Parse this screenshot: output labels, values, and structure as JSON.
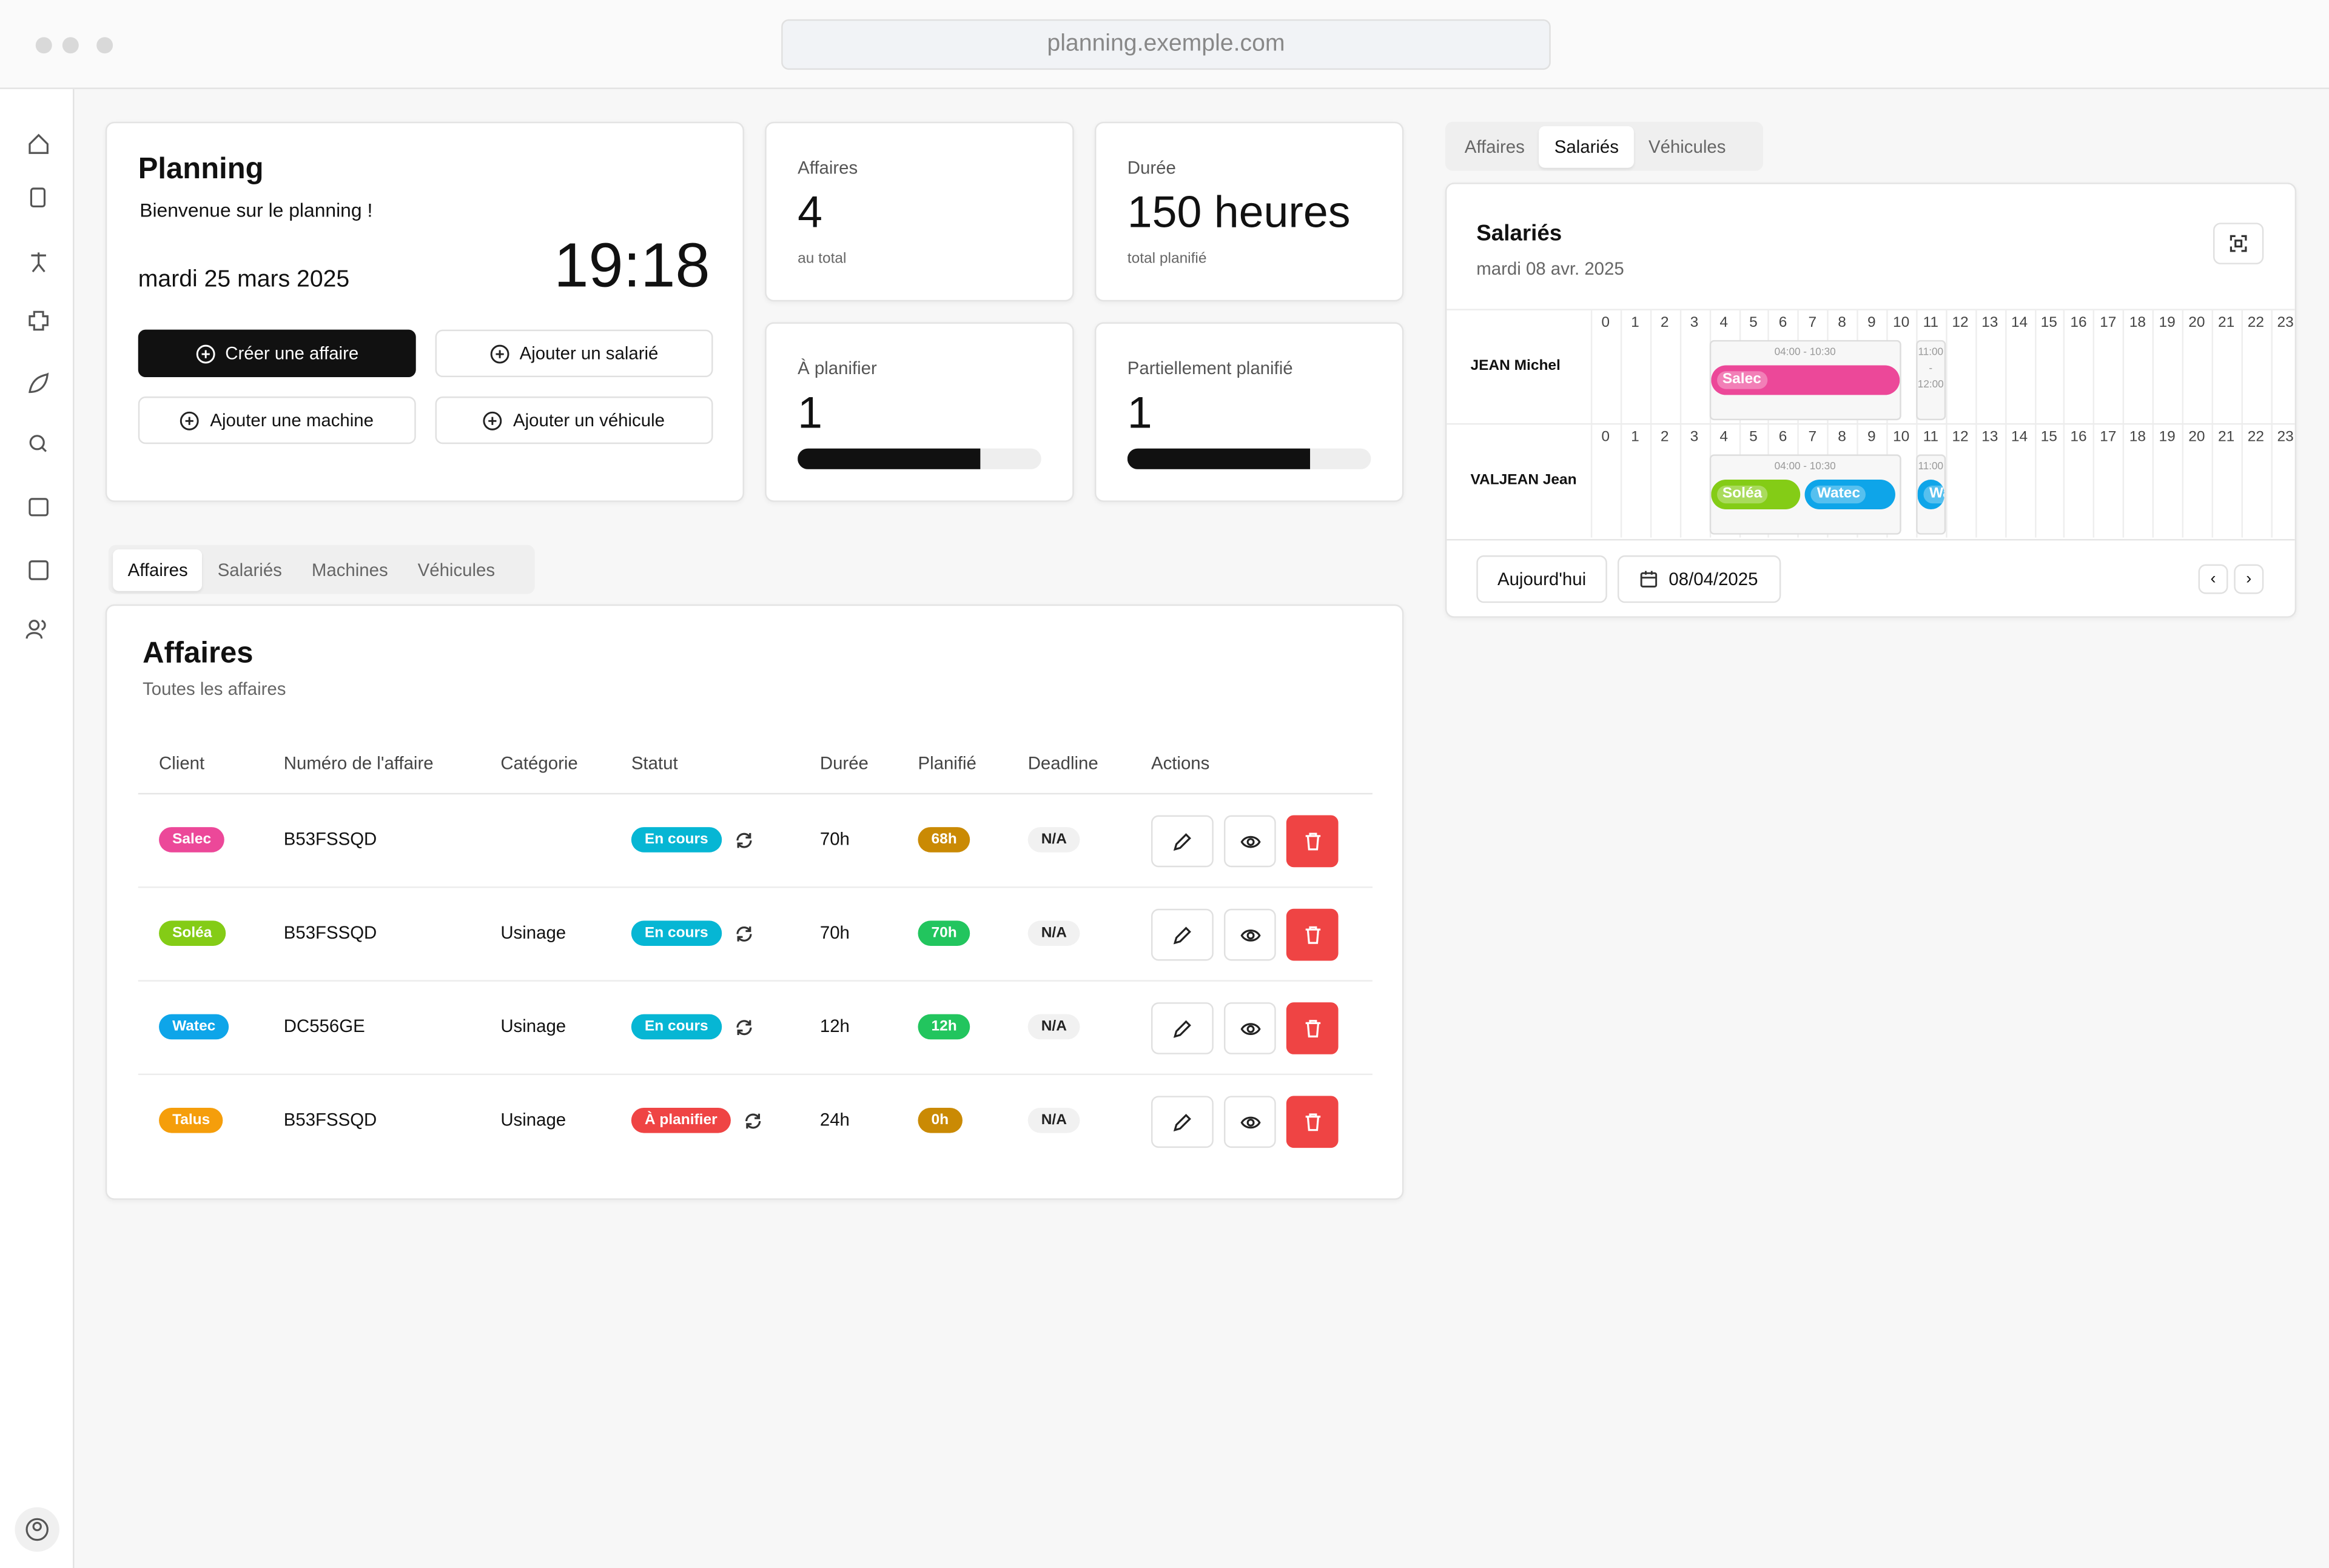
{
  "browser": {
    "url": "planning.exemple.com"
  },
  "welcome": {
    "title": "Planning",
    "subtitle": "Bienvenue sur le planning !",
    "date": "mardi 25 mars 2025",
    "time": "19:18",
    "buttons": [
      "Créer une affaire",
      "Ajouter un salarié",
      "Ajouter une machine",
      "Ajouter un véhicule"
    ]
  },
  "stats": [
    {
      "label": "Affaires",
      "value": "4",
      "note": "au total"
    },
    {
      "label": "Durée",
      "value": "150 heures",
      "note": "total planifié"
    },
    {
      "label": "À planifier",
      "value": "1",
      "progress": 75
    },
    {
      "label": "Partiellement planifié",
      "value": "1",
      "progress": 75
    }
  ],
  "tabs": [
    "Affaires",
    "Salariés",
    "Machines",
    "Véhicules"
  ],
  "affaires": {
    "title": "Affaires",
    "subtitle": "Toutes les affaires",
    "columns": [
      "Client",
      "Numéro de l'affaire",
      "Catégorie",
      "Statut",
      "Durée",
      "Planifié",
      "Deadline",
      "Actions"
    ],
    "rows": [
      {
        "client": "Salec",
        "client_color": "#ec4899",
        "numero": "B53FSSQD",
        "categorie": null,
        "statut": "En cours",
        "statut_color": "#06b6d4",
        "duree": "70h",
        "planifie": "68h",
        "planifie_color": "#ca8a04",
        "deadline": "N/A"
      },
      {
        "client": "Soléa",
        "client_color": "#84cc16",
        "numero": "B53FSSQD",
        "categorie": "Usinage",
        "statut": "En cours",
        "statut_color": "#06b6d4",
        "duree": "70h",
        "planifie": "70h",
        "planifie_color": "#22c55e",
        "deadline": "N/A"
      },
      {
        "client": "Watec",
        "client_color": "#0ea5e9",
        "numero": "DC556GE",
        "categorie": "Usinage",
        "statut": "En cours",
        "statut_color": "#06b6d4",
        "duree": "12h",
        "planifie": "12h",
        "planifie_color": "#22c55e",
        "deadline": "N/A"
      },
      {
        "client": "Talus",
        "client_color": "#f59e0b",
        "numero": "B53FSSQD",
        "categorie": "Usinage",
        "statut": "À planifier",
        "statut_color": "#ef4444",
        "duree": "24h",
        "planifie": "0h",
        "planifie_color": "#ca8a04",
        "deadline": "N/A"
      }
    ]
  },
  "planning": {
    "tabs": [
      "Affaires",
      "Salariés",
      "Véhicules"
    ],
    "title": "Salariés",
    "date": "mardi 08 avr. 2025",
    "hours": [
      0,
      1,
      2,
      3,
      4,
      5,
      6,
      7,
      8,
      9,
      10,
      11,
      12,
      13,
      14,
      15,
      16,
      17,
      18,
      19,
      20,
      21,
      22,
      23
    ],
    "rows": [
      {
        "name": "JEAN Michel",
        "slots": [
          {
            "time": "04:00 - 10:30",
            "tasks": [
              {
                "label": "Salec",
                "color": "#ec4899"
              }
            ]
          },
          {
            "time": "11:00 - 12:00",
            "tasks": []
          }
        ]
      },
      {
        "name": "VALJEAN Jean",
        "slots": [
          {
            "time": "04:00 - 10:30",
            "tasks": [
              {
                "label": "Soléa",
                "color": "#84cc16"
              },
              {
                "label": "Watec",
                "color": "#0ea5e9"
              }
            ]
          },
          {
            "time": "11:00",
            "tasks": [
              {
                "label": "Wa",
                "color": "#0ea5e9"
              }
            ]
          }
        ]
      }
    ],
    "today": "Aujourd'hui",
    "date_input": "08/04/2025"
  }
}
